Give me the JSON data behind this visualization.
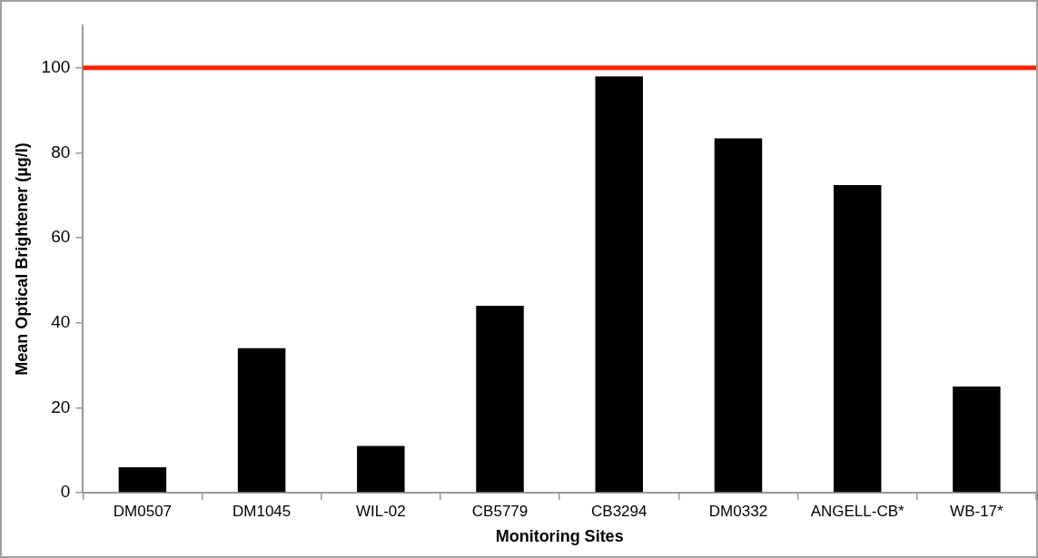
{
  "chart_data": {
    "type": "bar",
    "xlabel": "Monitoring Sites",
    "ylabel": "Mean Optical Brightener (µg/l)",
    "categories": [
      "DM0507",
      "DM1045",
      "WIL-02",
      "CB5779",
      "CB3294",
      "DM0332",
      "ANGELL-CB*",
      "WB-17*"
    ],
    "values": [
      6,
      34,
      11,
      44,
      98,
      83.4,
      72.4,
      25
    ],
    "color": "#000000",
    "ylim": [
      0,
      110
    ],
    "yticks": [
      0,
      20,
      40,
      60,
      80,
      100
    ],
    "grid": false,
    "legend": false,
    "ref_lines": [
      {
        "axis": "y",
        "value": 100,
        "color": "#ff2200",
        "line_style": "solid"
      }
    ]
  }
}
